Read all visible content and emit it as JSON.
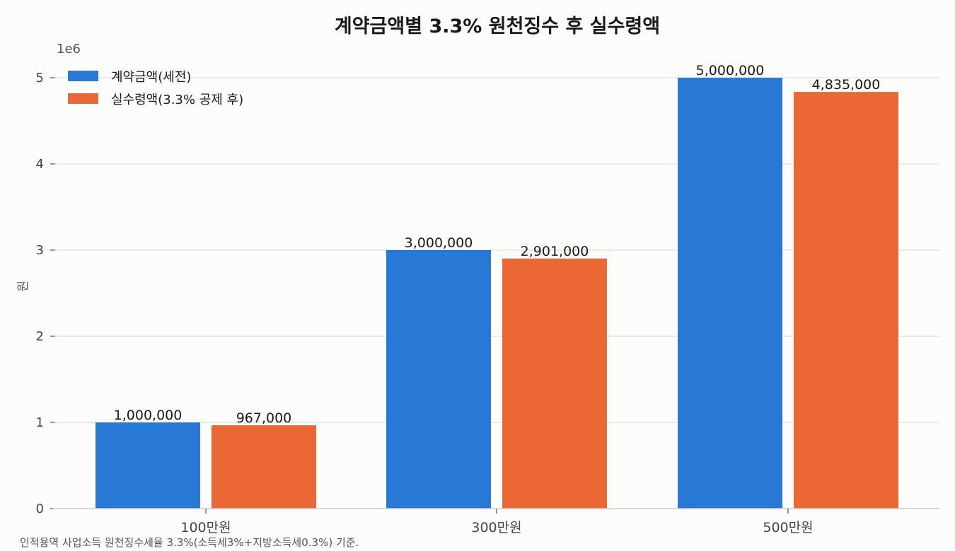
{
  "chart_data": {
    "type": "bar",
    "title": "계약금액별 3.3% 원천징수 후 실수령액",
    "ylabel": "원",
    "y_offset_label": "1e6",
    "categories": [
      "100만원",
      "300만원",
      "500만원"
    ],
    "series": [
      {
        "name": "계약금액(세전)",
        "color": "#2878d6",
        "values": [
          1000000,
          3000000,
          5000000
        ],
        "labels": [
          "1,000,000",
          "3,000,000",
          "5,000,000"
        ]
      },
      {
        "name": "실수령액(3.3% 공제 후)",
        "color": "#eb6834",
        "values": [
          967000,
          2901000,
          4835000
        ],
        "labels": [
          "967,000",
          "2,901,000",
          "4,835,000"
        ]
      }
    ],
    "ylim": [
      0,
      5000000
    ],
    "yticks": [
      0,
      1,
      2,
      3,
      4,
      5
    ],
    "grid": true,
    "legend_position": "top-left",
    "footnote": "인적용역 사업소득 원천징수세율 3.3%(소득세3%+지방소득세0.3%) 기준."
  }
}
